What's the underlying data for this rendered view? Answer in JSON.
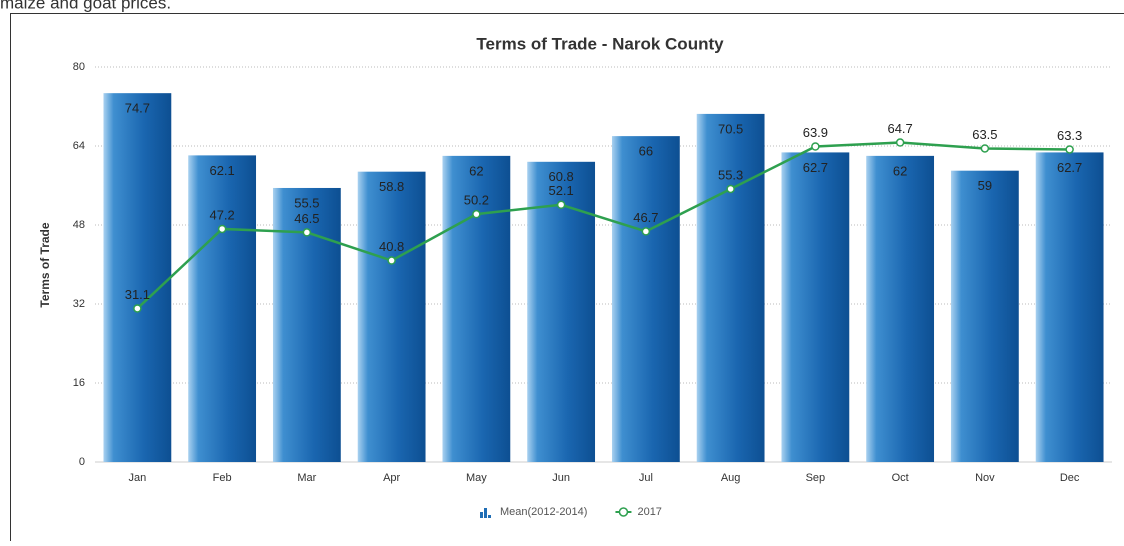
{
  "page_text": "maize and goat prices.",
  "chart_data": {
    "type": "bar",
    "title": "Terms of Trade - Narok County",
    "y_label": "Terms of Trade",
    "categories": [
      "Jan",
      "Feb",
      "Mar",
      "Apr",
      "May",
      "Jun",
      "Jul",
      "Aug",
      "Sep",
      "Oct",
      "Nov",
      "Dec"
    ],
    "series": [
      {
        "name": "Mean(2012-2014)",
        "type": "bar",
        "color": "#1f6db5",
        "values": [
          74.7,
          62.1,
          55.5,
          58.8,
          62,
          60.8,
          66,
          70.5,
          62.7,
          62,
          59,
          62.7
        ]
      },
      {
        "name": "2017",
        "type": "line",
        "color": "#2ea04f",
        "values": [
          31.1,
          47.2,
          46.5,
          40.8,
          50.2,
          52.1,
          46.7,
          55.3,
          63.9,
          64.7,
          63.5,
          63.3
        ]
      }
    ],
    "ylim": [
      0,
      80
    ],
    "yticks": [
      0,
      16,
      32,
      48,
      64,
      80
    ],
    "grid": true
  }
}
